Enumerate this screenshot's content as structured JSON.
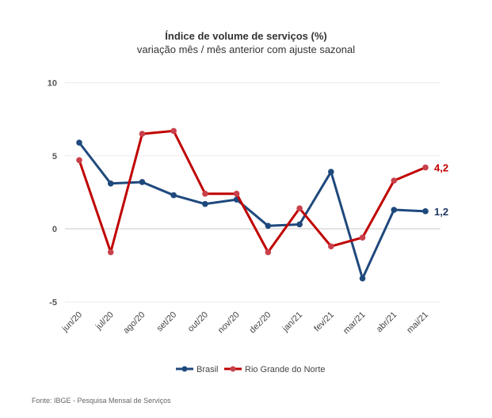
{
  "chart_data": {
    "type": "line",
    "title": "Índice de volume de serviços (%)",
    "subtitle": "variação mês / mês anterior com ajuste sazonal",
    "categories": [
      "jun/20",
      "jul/20",
      "ago/20",
      "set/20",
      "out/20",
      "nov/20",
      "dez/20",
      "jan/21",
      "fev/21",
      "mar/21",
      "abr/21",
      "mai/21"
    ],
    "yticks": [
      "10",
      "5",
      "0",
      "-5"
    ],
    "ylim": [
      -5,
      10
    ],
    "grid": true,
    "legend": "bottom",
    "series": [
      {
        "name": "Brasil",
        "color": "#1F497D",
        "values": [
          5.9,
          3.1,
          3.2,
          2.3,
          1.7,
          2.0,
          0.2,
          0.3,
          3.9,
          -3.4,
          1.3,
          1.2
        ],
        "end_label": "1,2",
        "end_label_color": "#1F3864"
      },
      {
        "name": "Rio Grande do Norte",
        "color": "#C00000",
        "values": [
          4.7,
          -1.6,
          6.5,
          6.7,
          2.4,
          2.4,
          -1.6,
          1.4,
          -1.2,
          -0.6,
          3.3,
          4.2
        ],
        "end_label": "4,2",
        "end_label_color": "#C00000"
      }
    ]
  },
  "source": "Fonte: IBGE - Pesquisa Mensal de Serviços"
}
